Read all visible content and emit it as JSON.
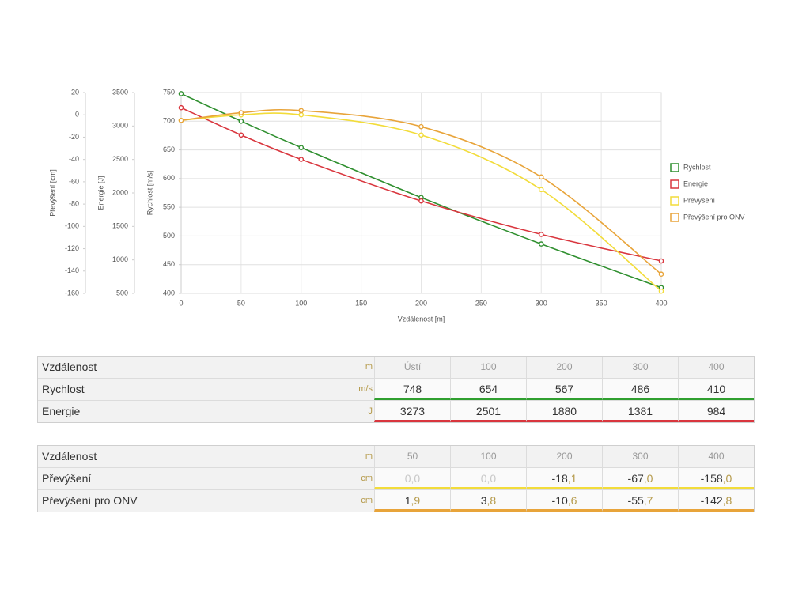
{
  "chart_data": {
    "type": "line",
    "x": [
      0,
      50,
      100,
      200,
      300,
      400
    ],
    "xlim": [
      0,
      400
    ],
    "xticks": [
      0,
      50,
      100,
      150,
      200,
      250,
      300,
      350,
      400
    ],
    "xlabel": "Vzdálenost [m]",
    "ylim": [
      400,
      750
    ],
    "yticks": [
      400,
      450,
      500,
      550,
      600,
      650,
      700,
      750
    ],
    "ylabel": "Rychlost [m/s]",
    "y2lim": [
      500,
      3500
    ],
    "y2ticks": [
      500,
      1000,
      1500,
      2000,
      2500,
      3000,
      3500
    ],
    "y2label": "Energie [J]",
    "y3lim": [
      -160,
      20
    ],
    "y3ticks": [
      -160,
      -140,
      -120,
      -100,
      -80,
      -60,
      -40,
      -20,
      0,
      20
    ],
    "y3label": "Převýšení [cm]",
    "grid": true,
    "legend": "right",
    "series": [
      {
        "name": "Rychlost",
        "color": "#2f8f2f",
        "axis": "y",
        "values": [
          748,
          700,
          654,
          567,
          486,
          410
        ]
      },
      {
        "name": "Energie",
        "color": "#d9363e",
        "axis": "y2",
        "values": [
          3273,
          2865,
          2501,
          1880,
          1381,
          984
        ]
      },
      {
        "name": "Převýšení",
        "color": "#f2dc3a",
        "axis": "y3",
        "values": [
          -5,
          0,
          0,
          -18.1,
          -67,
          -158
        ]
      },
      {
        "name": "Převýšení pro ONV",
        "color": "#e8a43a",
        "axis": "y3",
        "values": [
          -5,
          1.9,
          3.8,
          -10.6,
          -55.7,
          -142.8
        ]
      }
    ]
  },
  "table1": {
    "header": {
      "label": "Vzdálenost",
      "unit": "m",
      "cells": [
        "Ústí",
        "100",
        "200",
        "300",
        "400"
      ]
    },
    "rows": [
      {
        "label": "Rychlost",
        "unit": "m/s",
        "color": "#2f9f2f",
        "cells": [
          "748",
          "654",
          "567",
          "486",
          "410"
        ]
      },
      {
        "label": "Energie",
        "unit": "J",
        "color": "#d9363e",
        "cells": [
          "3273",
          "2501",
          "1880",
          "1381",
          "984"
        ]
      }
    ]
  },
  "table2": {
    "header": {
      "label": "Vzdálenost",
      "unit": "m",
      "cells": [
        "50",
        "100",
        "200",
        "300",
        "400"
      ]
    },
    "rows": [
      {
        "label": "Převýšení",
        "unit": "cm",
        "color": "#f2dc3a",
        "cells": [
          {
            "whole": "0",
            "decimal": ",0"
          },
          {
            "whole": "0",
            "decimal": ",0"
          },
          {
            "whole": "-18",
            "decimal": ",1"
          },
          {
            "whole": "-67",
            "decimal": ",0"
          },
          {
            "whole": "-158",
            "decimal": ",0"
          }
        ]
      },
      {
        "label": "Převýšení pro ONV",
        "unit": "cm",
        "color": "#e8a43a",
        "cells": [
          {
            "whole": "1",
            "decimal": ",9"
          },
          {
            "whole": "3",
            "decimal": ",8"
          },
          {
            "whole": "-10",
            "decimal": ",6"
          },
          {
            "whole": "-55",
            "decimal": ",7"
          },
          {
            "whole": "-142",
            "decimal": ",8"
          }
        ]
      }
    ]
  }
}
